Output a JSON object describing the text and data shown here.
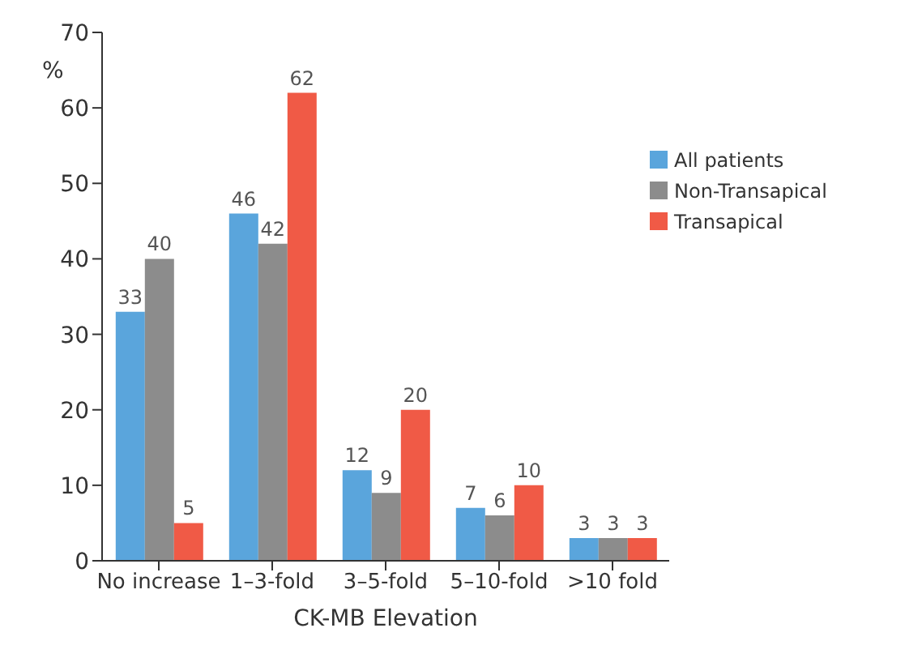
{
  "chart_data": {
    "type": "bar",
    "xlabel": "CK-MB Elevation",
    "ylabel": "%",
    "categories": [
      "No increase",
      "1–3-fold",
      "3–5-fold",
      "5–10-fold",
      ">10 fold"
    ],
    "series": [
      {
        "name": "All patients",
        "color": "#5aa5dc",
        "values": [
          33,
          46,
          12,
          7,
          3
        ]
      },
      {
        "name": "Non-Transapical",
        "color": "#8c8c8c",
        "values": [
          40,
          42,
          9,
          6,
          3
        ]
      },
      {
        "name": "Transapical",
        "color": "#f05a46",
        "values": [
          5,
          62,
          20,
          10,
          3
        ]
      }
    ],
    "ylim": [
      0,
      70
    ],
    "yticks": [
      0,
      10,
      20,
      30,
      40,
      50,
      60,
      70
    ],
    "grid": false,
    "legend": "top right",
    "data_labels": true
  }
}
